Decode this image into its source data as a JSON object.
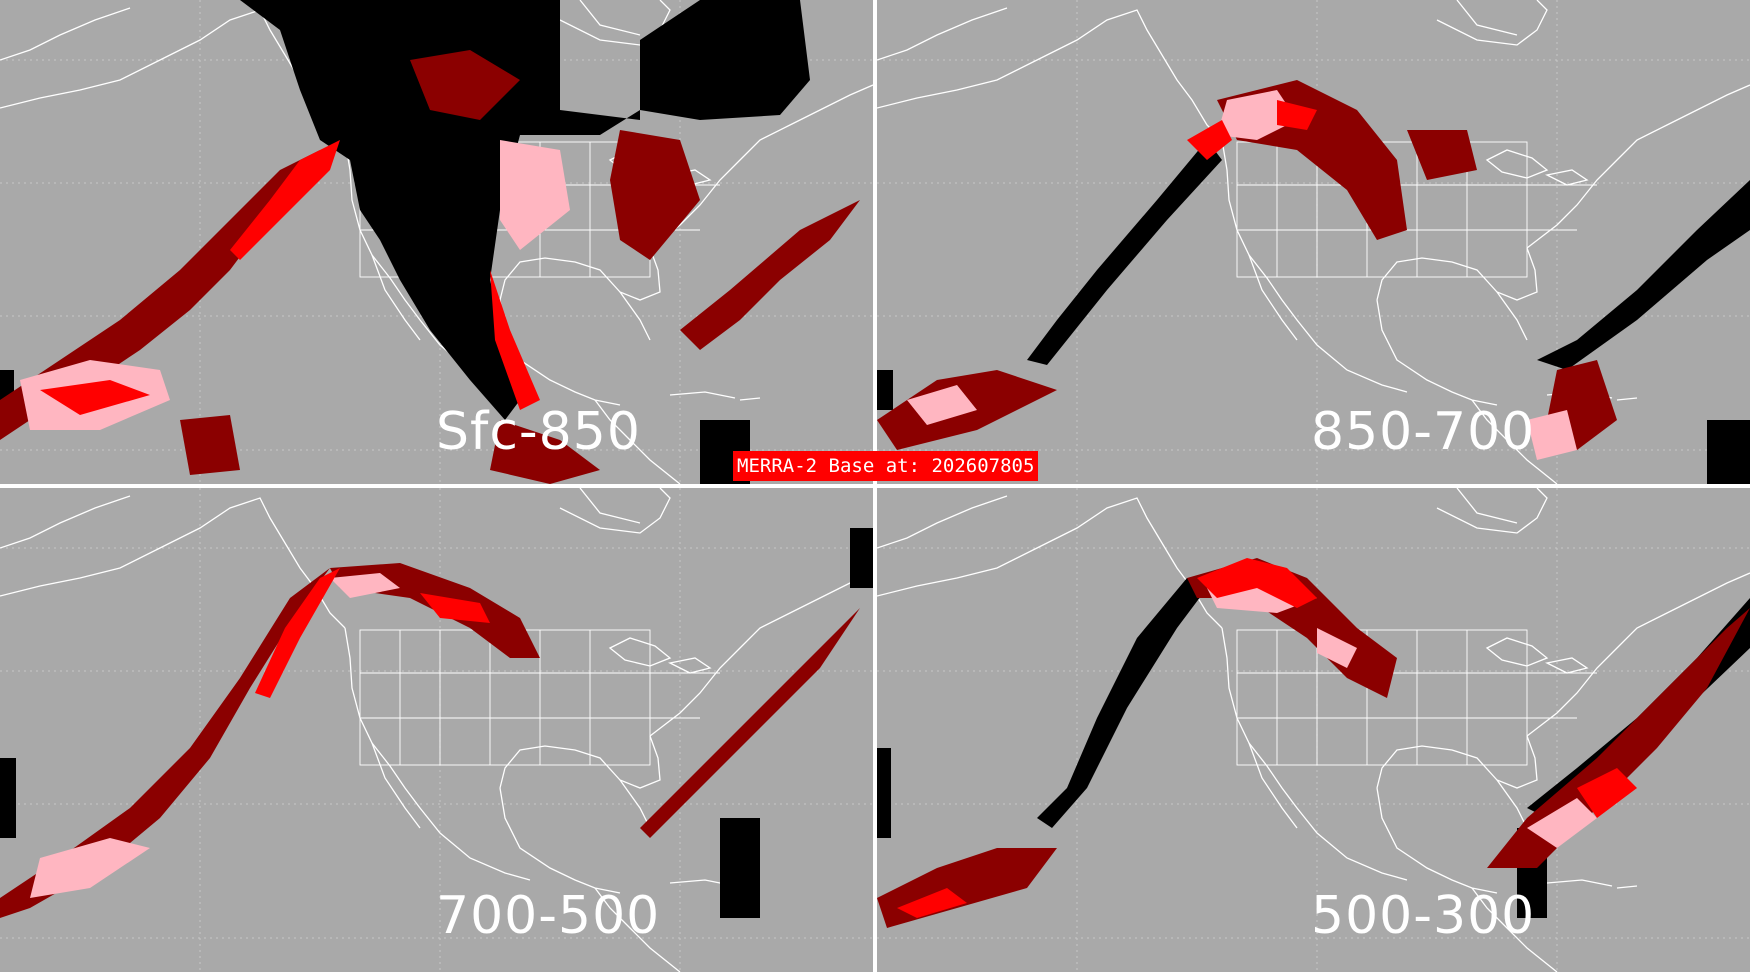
{
  "title_banner": "MERRA-2 Base at: 202607805",
  "panels": [
    {
      "id": "tl",
      "label": "Sfc-850"
    },
    {
      "id": "tr",
      "label": "850-700"
    },
    {
      "id": "bl",
      "label": "700-500"
    },
    {
      "id": "br",
      "label": "500-300"
    }
  ],
  "colors": {
    "background": "#a9a9a9",
    "coastline": "#ffffff",
    "category_black": "#000000",
    "category_dark_red": "#8b0000",
    "category_red": "#ff0000",
    "category_pink": "#ffb6c1",
    "banner": "#ff0000"
  }
}
